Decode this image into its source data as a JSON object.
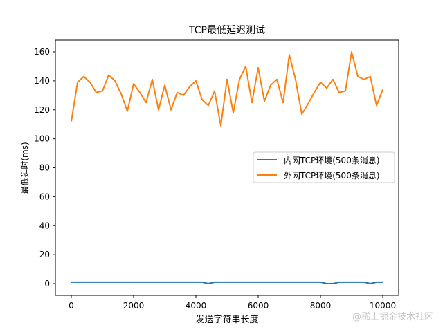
{
  "chart_data": {
    "type": "line",
    "title": "TCP最低延迟测试",
    "xlabel": "发送字符串长度",
    "ylabel": "最低延时(ms)",
    "xlim": [
      -500,
      10500
    ],
    "ylim": [
      -8,
      168
    ],
    "xticks": [
      0,
      2000,
      4000,
      6000,
      8000,
      10000
    ],
    "yticks": [
      0,
      20,
      40,
      60,
      80,
      100,
      120,
      140,
      160
    ],
    "grid": false,
    "legend_position": "center right",
    "x": [
      0,
      200,
      400,
      600,
      800,
      1000,
      1200,
      1400,
      1600,
      1800,
      2000,
      2200,
      2400,
      2600,
      2800,
      3000,
      3200,
      3400,
      3600,
      3800,
      4000,
      4200,
      4400,
      4600,
      4800,
      5000,
      5200,
      5400,
      5600,
      5800,
      6000,
      6200,
      6400,
      6600,
      6800,
      7000,
      7200,
      7400,
      7600,
      7800,
      8000,
      8200,
      8400,
      8600,
      8800,
      9000,
      9200,
      9400,
      9600,
      9800,
      10000
    ],
    "series": [
      {
        "name": "内网TCP环境(500条消息)",
        "color": "#1f77b4",
        "values": [
          1,
          1,
          1,
          1,
          1,
          1,
          1,
          1,
          1,
          1,
          1,
          1,
          1,
          1,
          1,
          1,
          1,
          1,
          1,
          1,
          1,
          1,
          0,
          1,
          1,
          1,
          1,
          1,
          1,
          1,
          1,
          1,
          1,
          1,
          1,
          1,
          1,
          1,
          1,
          1,
          1,
          0,
          0,
          1,
          1,
          1,
          1,
          1,
          0,
          1,
          1
        ]
      },
      {
        "name": "外网TCP环境(500条消息)",
        "color": "#ff7f0e",
        "values": [
          112,
          139,
          143,
          139,
          132,
          133,
          144,
          140,
          131,
          119,
          138,
          132,
          125,
          141,
          120,
          137,
          120,
          132,
          130,
          136,
          140,
          127,
          123,
          133,
          109,
          141,
          118,
          141,
          150,
          125,
          149,
          126,
          137,
          141,
          125,
          158,
          141,
          117,
          124,
          132,
          139,
          135,
          141,
          132,
          133,
          160,
          143,
          141,
          143,
          123,
          134
        ]
      }
    ]
  },
  "watermark": "@稀土掘金技术社区"
}
